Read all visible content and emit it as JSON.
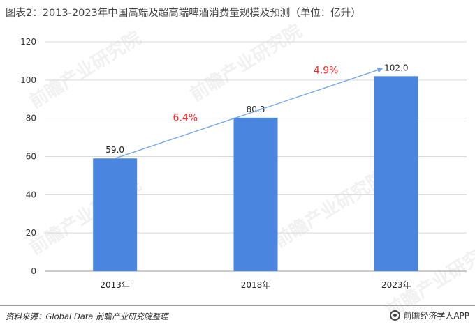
{
  "title": "图表2：2013-2023年中国高端及超高端啤酒消费量规模及预测（单位：亿升）",
  "source": "资料来源：Global Data 前瞻产业研究院整理",
  "brand": "前瞻经济学人APP",
  "watermark": "前瞻产业研究院",
  "colors": {
    "bar": "#4a86e0",
    "arrow": "#6fa3e8",
    "growth": "#ff2626",
    "axis": "#999999",
    "grid": "#d9d9d9"
  },
  "chart_data": {
    "type": "bar",
    "categories": [
      "2013年",
      "2018年",
      "2023年"
    ],
    "values": [
      59.0,
      80.3,
      102.0
    ],
    "value_labels": [
      "59.0",
      "80.3",
      "102.0"
    ],
    "ylim": [
      0,
      120
    ],
    "yticks": [
      0,
      20,
      40,
      60,
      80,
      100,
      120
    ],
    "grid": true,
    "annotations": [
      {
        "text": "6.4%",
        "between": [
          "2013年",
          "2018年"
        ]
      },
      {
        "text": "4.9%",
        "between": [
          "2018年",
          "2023年"
        ]
      }
    ]
  }
}
